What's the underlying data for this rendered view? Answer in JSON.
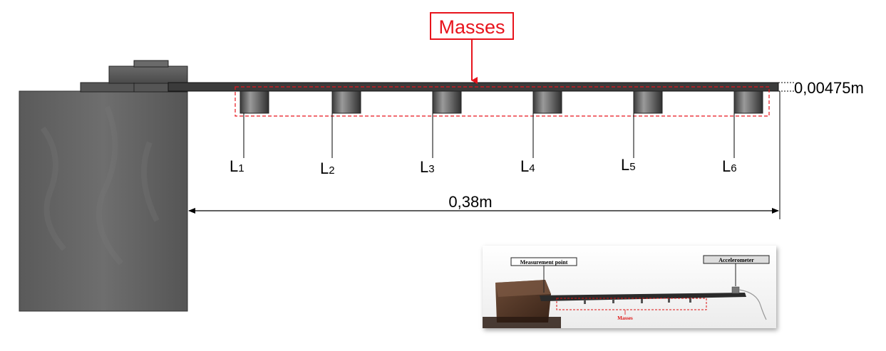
{
  "diagram": {
    "masses_label": "Masses",
    "thickness_label": "0,00475m",
    "length_label": "0,38m",
    "positions": [
      {
        "letter": "L",
        "sub": "1"
      },
      {
        "letter": "L",
        "sub": "2"
      },
      {
        "letter": "L",
        "sub": "3"
      },
      {
        "letter": "L",
        "sub": "4"
      },
      {
        "letter": "L",
        "sub": "5"
      },
      {
        "letter": "L",
        "sub": "6"
      }
    ],
    "accent_color": "#e8141c"
  },
  "photo": {
    "measurement_point_label": "Measurement point",
    "accelerometer_label": "Accelerometer",
    "masses_label": "Masses"
  }
}
